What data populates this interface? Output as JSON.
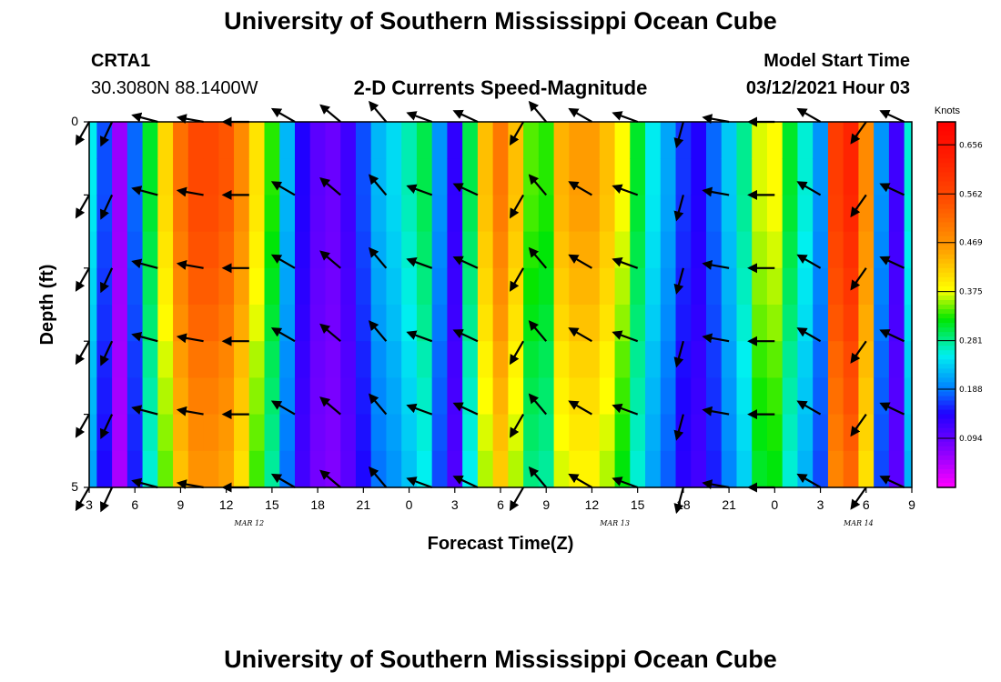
{
  "header": {
    "title_top": "University of Southern Mississippi Ocean Cube",
    "title_bottom": "University of Southern Mississippi Ocean Cube",
    "station_id": "CRTA1",
    "station_coords": "30.3080N 88.1400W",
    "chart_title": "2-D Currents Speed-Magnitude",
    "model_start_label": "Model Start Time",
    "model_start_value": "03/12/2021 Hour 03"
  },
  "chart_data": {
    "type": "heatmap",
    "title": "2-D Currents Speed-Magnitude",
    "xlabel": "Forecast Time(Z)",
    "ylabel": "Depth (ft)",
    "x_tick_labels": [
      "3",
      "6",
      "9",
      "12",
      "15",
      "18",
      "21",
      "0",
      "3",
      "6",
      "9",
      "12",
      "15",
      "18",
      "21",
      "0",
      "3",
      "6",
      "9"
    ],
    "date_labels": [
      {
        "text": "MAR 12",
        "hours_from_start": 10.5
      },
      {
        "text": "MAR 13",
        "hours_from_start": 34.5
      },
      {
        "text": "MAR 14",
        "hours_from_start": 50.5
      }
    ],
    "x_range_hours": [
      0,
      54
    ],
    "y_tick_labels": [
      "0",
      "5"
    ],
    "y_range_ft": [
      0,
      5
    ],
    "colorbar": {
      "unit": "Knots",
      "tick_labels": [
        "0.656",
        "0.562",
        "0.469",
        "0.375",
        "0.281",
        "0.188",
        "0.094"
      ],
      "range": [
        0.0,
        0.7
      ]
    },
    "hours": [
      0,
      1,
      2,
      3,
      4,
      5,
      6,
      7,
      8,
      9,
      10,
      11,
      12,
      13,
      14,
      15,
      16,
      17,
      18,
      19,
      20,
      21,
      22,
      23,
      24,
      25,
      26,
      27,
      28,
      29,
      30,
      31,
      32,
      33,
      34,
      35,
      36,
      37,
      38,
      39,
      40,
      41,
      42,
      43,
      44,
      45,
      46,
      47,
      48,
      49,
      50,
      51,
      52,
      53,
      54
    ],
    "speed_profile_knots": [
      0.25,
      0.17,
      0.06,
      0.18,
      0.31,
      0.41,
      0.51,
      0.56,
      0.56,
      0.54,
      0.48,
      0.4,
      0.33,
      0.22,
      0.14,
      0.1,
      0.09,
      0.12,
      0.17,
      0.22,
      0.24,
      0.27,
      0.3,
      0.2,
      0.13,
      0.3,
      0.43,
      0.5,
      0.43,
      0.34,
      0.33,
      0.44,
      0.46,
      0.46,
      0.43,
      0.38,
      0.31,
      0.25,
      0.21,
      0.16,
      0.14,
      0.18,
      0.23,
      0.28,
      0.37,
      0.38,
      0.31,
      0.26,
      0.2,
      0.58,
      0.62,
      0.48,
      0.2,
      0.12,
      0.26
    ],
    "depth_rows_ft": [
      0,
      0.5,
      1,
      1.5,
      2,
      2.5,
      3,
      3.5,
      4,
      4.5,
      5
    ],
    "depth_factor": [
      1.0,
      1.0,
      0.99,
      0.97,
      0.95,
      0.93,
      0.9,
      0.88,
      0.86,
      0.84,
      0.8
    ],
    "vectors": {
      "hours": [
        0,
        1.5,
        4.5,
        7.5,
        10.5,
        13.5,
        16.5,
        19.5,
        22.5,
        25.5,
        28.5,
        30,
        33,
        36,
        39,
        42,
        45,
        48,
        51,
        53.5
      ],
      "directions_deg": [
        120,
        115,
        195,
        190,
        180,
        210,
        220,
        230,
        200,
        205,
        120,
        230,
        210,
        200,
        105,
        190,
        180,
        210,
        125,
        205
      ],
      "depth_rows_ft": [
        0,
        1,
        2,
        3,
        4,
        5
      ]
    }
  }
}
